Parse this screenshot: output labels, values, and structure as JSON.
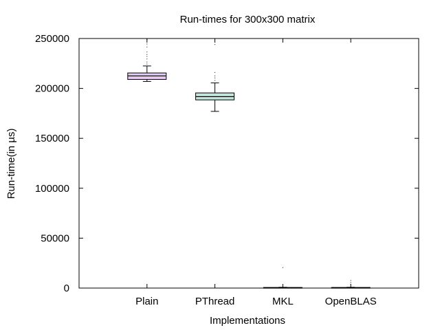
{
  "chart_data": {
    "type": "box",
    "title": "Run-times for 300x300 matrix",
    "xlabel": "Implementations",
    "ylabel": "Run-time(in µs)",
    "ylim": [
      0,
      250000
    ],
    "y_ticks": [
      0,
      50000,
      100000,
      150000,
      200000,
      250000
    ],
    "y_tick_labels": [
      "0",
      "50000",
      "100000",
      "150000",
      "200000",
      "250000"
    ],
    "grid": false,
    "categories": [
      "Plain",
      "PThread",
      "MKL",
      "OpenBLAS"
    ],
    "series": [
      {
        "category": "Plain",
        "color": "#e3c8f2",
        "whisker_low": 207000,
        "q1": 209000,
        "median": 212500,
        "q3": 215500,
        "whisker_high": 222500,
        "outliers": [
          224500,
          226500,
          229500,
          232000,
          234000,
          236500,
          241500,
          244500,
          249000
        ]
      },
      {
        "category": "PThread",
        "color": "#c1e7dd",
        "whisker_low": 177000,
        "q1": 188500,
        "median": 191800,
        "q3": 195500,
        "whisker_high": 205500,
        "outliers": [
          208000,
          210500,
          212500,
          216000,
          244000
        ]
      },
      {
        "category": "MKL",
        "color": "#e3c8f2",
        "whisker_low": 0,
        "q1": 200,
        "median": 400,
        "q3": 600,
        "whisker_high": 800,
        "outliers": [
          20500
        ]
      },
      {
        "category": "OpenBLAS",
        "color": "#c1e7dd",
        "whisker_low": 0,
        "q1": 200,
        "median": 400,
        "q3": 600,
        "whisker_high": 800,
        "outliers": [
          3500,
          5500,
          7500
        ]
      }
    ]
  }
}
